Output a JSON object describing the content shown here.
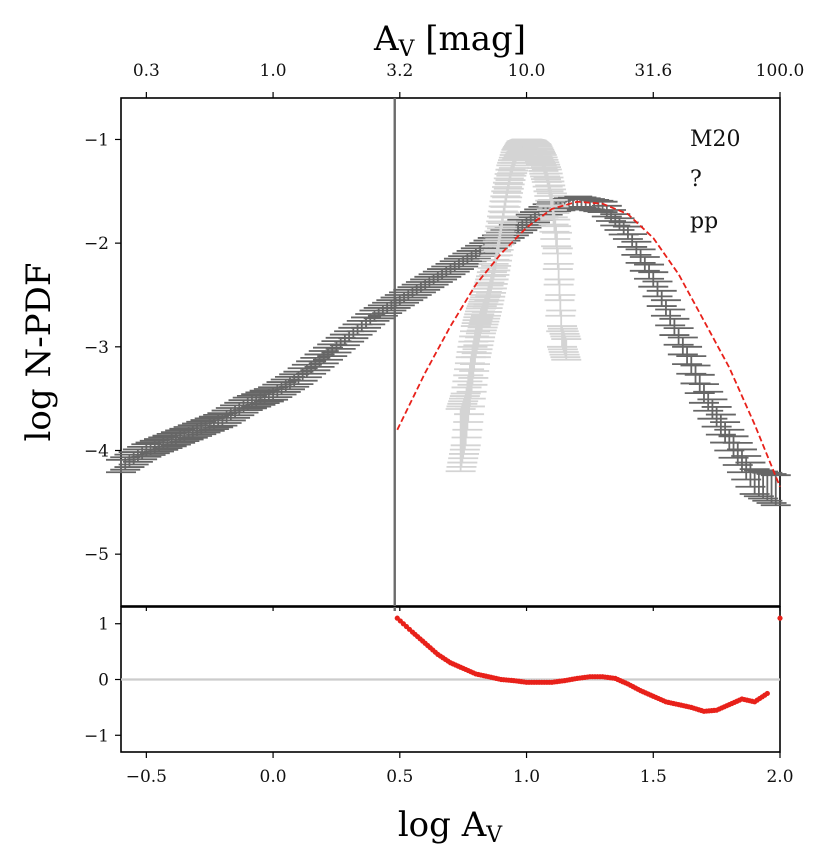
{
  "chart_data": {
    "type": "line",
    "top_axis": {
      "label": "A",
      "label_sub": "V",
      "label_suffix": " [mag]",
      "ticks": [
        {
          "label": "0.3",
          "at": -0.5
        },
        {
          "label": "1.0",
          "at": 0.0
        },
        {
          "label": "3.2",
          "at": 0.5
        },
        {
          "label": "10.0",
          "at": 1.0
        },
        {
          "label": "31.6",
          "at": 1.5
        },
        {
          "label": "100.0",
          "at": 2.0
        }
      ]
    },
    "xlabel": "log A",
    "xlabel_sub": "V",
    "xlim": [
      -0.6,
      2.0
    ],
    "xticks": [
      {
        "label": "−0.5",
        "at": -0.5
      },
      {
        "label": "0.0",
        "at": 0.0
      },
      {
        "label": "0.5",
        "at": 0.5
      },
      {
        "label": "1.0",
        "at": 1.0
      },
      {
        "label": "1.5",
        "at": 1.5
      },
      {
        "label": "2.0",
        "at": 2.0
      }
    ],
    "upper_panel": {
      "ylabel": "log N-PDF",
      "ylim": [
        -5.5,
        -0.6
      ],
      "yticks": [
        {
          "label": "−1",
          "at": -1
        },
        {
          "label": "−2",
          "at": -2
        },
        {
          "label": "−3",
          "at": -3
        },
        {
          "label": "−4",
          "at": -4
        },
        {
          "label": "−5",
          "at": -5
        }
      ],
      "annotations": [
        "M20",
        "?",
        "pp"
      ],
      "vertical_line_x": 0.48,
      "series": [
        {
          "name": "N-PDF (dark)",
          "color": "#666666",
          "x": [
            -0.6,
            -0.5,
            -0.4,
            -0.3,
            -0.2,
            -0.1,
            0.0,
            0.1,
            0.2,
            0.3,
            0.4,
            0.5,
            0.6,
            0.7,
            0.8,
            0.9,
            1.0,
            1.1,
            1.2,
            1.3,
            1.4,
            1.5,
            1.6,
            1.7,
            1.8,
            1.9,
            2.0
          ],
          "y": [
            -4.15,
            -4.0,
            -3.9,
            -3.8,
            -3.7,
            -3.55,
            -3.45,
            -3.3,
            -3.1,
            -2.9,
            -2.7,
            -2.55,
            -2.4,
            -2.25,
            -2.1,
            -1.95,
            -1.8,
            -1.65,
            -1.6,
            -1.65,
            -1.9,
            -2.35,
            -2.9,
            -3.45,
            -3.9,
            -4.3,
            -4.4
          ],
          "err": [
            0.06,
            0.06,
            0.06,
            0.06,
            0.06,
            0.06,
            0.06,
            0.06,
            0.06,
            0.05,
            0.05,
            0.05,
            0.05,
            0.05,
            0.05,
            0.05,
            0.05,
            0.05,
            0.05,
            0.05,
            0.06,
            0.07,
            0.08,
            0.09,
            0.1,
            0.12,
            0.15
          ]
        },
        {
          "name": "N-PDF (light)",
          "color": "#d4d4d4",
          "x": [
            0.74,
            0.76,
            0.78,
            0.8,
            0.82,
            0.84,
            0.86,
            0.88,
            0.9,
            0.92,
            0.94,
            0.96,
            0.98,
            1.0,
            1.02,
            1.04,
            1.06,
            1.08,
            1.1,
            1.12,
            1.14,
            1.16
          ],
          "y": [
            -3.9,
            -3.7,
            -3.3,
            -2.95,
            -2.75,
            -2.6,
            -2.4,
            -2.15,
            -1.85,
            -1.55,
            -1.3,
            -1.15,
            -1.07,
            -1.05,
            -1.06,
            -1.1,
            -1.2,
            -1.35,
            -1.6,
            -2.0,
            -2.9,
            -3.05
          ],
          "err": [
            0.3,
            0.25,
            0.2,
            0.15,
            0.12,
            0.1,
            0.08,
            0.07,
            0.06,
            0.05,
            0.05,
            0.05,
            0.05,
            0.05,
            0.05,
            0.05,
            0.05,
            0.06,
            0.08,
            0.1,
            0.1,
            0.1
          ]
        },
        {
          "name": "fit",
          "color": "#e8211a",
          "style": "dashed",
          "x": [
            0.49,
            0.6,
            0.7,
            0.8,
            0.9,
            1.0,
            1.1,
            1.2,
            1.3,
            1.4,
            1.5,
            1.6,
            1.7,
            1.8,
            1.9,
            2.0
          ],
          "y": [
            -3.8,
            -3.25,
            -2.8,
            -2.4,
            -2.1,
            -1.85,
            -1.67,
            -1.6,
            -1.62,
            -1.72,
            -1.95,
            -2.3,
            -2.75,
            -3.2,
            -3.75,
            -4.35
          ]
        }
      ]
    },
    "lower_panel": {
      "ylim": [
        -1.3,
        1.3
      ],
      "yticks": [
        {
          "label": "1",
          "at": 1
        },
        {
          "label": "0",
          "at": 0
        },
        {
          "label": "−1",
          "at": -1
        }
      ],
      "zero_line": true,
      "series": [
        {
          "name": "residuals",
          "color": "#e8211a",
          "x": [
            0.49,
            0.55,
            0.6,
            0.65,
            0.7,
            0.75,
            0.8,
            0.85,
            0.9,
            0.95,
            1.0,
            1.05,
            1.1,
            1.15,
            1.2,
            1.25,
            1.3,
            1.35,
            1.4,
            1.45,
            1.5,
            1.55,
            1.6,
            1.65,
            1.7,
            1.75,
            1.8,
            1.85,
            1.9,
            1.95,
            2.0
          ],
          "y": [
            1.1,
            0.85,
            0.65,
            0.45,
            0.3,
            0.2,
            0.1,
            0.05,
            0.0,
            -0.02,
            -0.05,
            -0.05,
            -0.05,
            -0.02,
            0.02,
            0.05,
            0.05,
            0.02,
            -0.08,
            -0.2,
            -0.3,
            -0.4,
            -0.45,
            -0.5,
            -0.57,
            -0.55,
            -0.45,
            -0.35,
            -0.4,
            -0.25,
            1.1
          ]
        }
      ]
    }
  }
}
